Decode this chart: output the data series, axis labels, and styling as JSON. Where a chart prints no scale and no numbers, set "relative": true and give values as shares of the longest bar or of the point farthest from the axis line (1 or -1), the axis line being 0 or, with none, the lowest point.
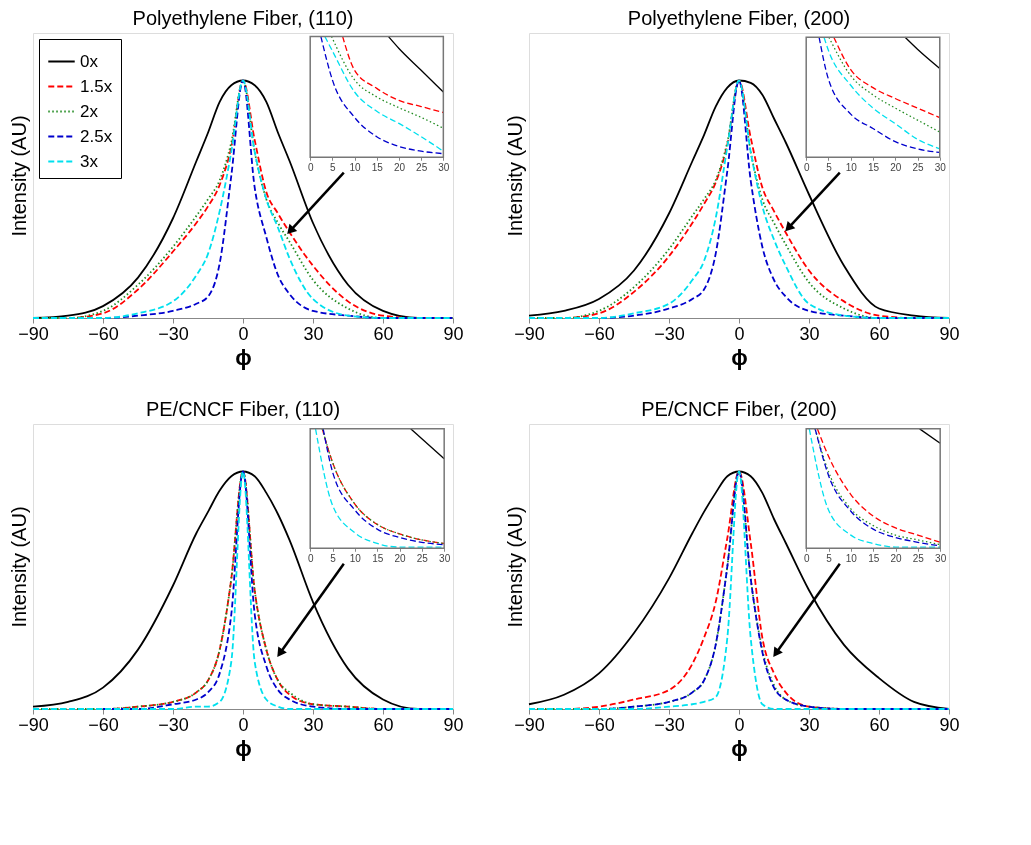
{
  "chart_data": [
    {
      "type": "line",
      "title": "Polyethylene Fiber, (110)",
      "xlabel": "ϕ",
      "ylabel": "Intensity (AU)",
      "relative": true,
      "xlim": [
        -90,
        90
      ],
      "xticks": [
        -90,
        -60,
        -30,
        0,
        30,
        60,
        90
      ],
      "tick_labels": "x",
      "legend": "top left",
      "x": [
        -90,
        -75,
        -60,
        -45,
        -30,
        -20,
        -15,
        -10,
        -5,
        0,
        5,
        10,
        15,
        20,
        30,
        45,
        60,
        75,
        90
      ],
      "series": [
        {
          "name": "0x",
          "color": "#000000",
          "line_style": "solid",
          "values": [
            0,
            0.01,
            0.05,
            0.17,
            0.42,
            0.66,
            0.78,
            0.91,
            0.98,
            1,
            0.98,
            0.91,
            0.78,
            0.66,
            0.4,
            0.14,
            0.03,
            0,
            0
          ]
        },
        {
          "name": "1.5x",
          "color": "#ff0000",
          "line_style": "dashed",
          "values": [
            0,
            0,
            0.02,
            0.12,
            0.28,
            0.4,
            0.47,
            0.56,
            0.72,
            1,
            0.75,
            0.53,
            0.44,
            0.36,
            0.22,
            0.07,
            0.01,
            0,
            0
          ]
        },
        {
          "name": "2x",
          "color": "#228b22",
          "line_style": "dotted",
          "values": [
            0,
            0,
            0.03,
            0.14,
            0.3,
            0.43,
            0.5,
            0.58,
            0.74,
            1,
            0.7,
            0.5,
            0.4,
            0.32,
            0.16,
            0.04,
            0,
            0,
            0
          ]
        },
        {
          "name": "2.5x",
          "color": "#0000cc",
          "line_style": "dashed",
          "values": [
            0,
            0,
            0,
            0.01,
            0.03,
            0.06,
            0.09,
            0.23,
            0.6,
            1,
            0.55,
            0.34,
            0.18,
            0.1,
            0.03,
            0.01,
            0,
            0,
            0
          ]
        },
        {
          "name": "3x",
          "color": "#00e0ee",
          "line_style": "dashed",
          "values": [
            0,
            0,
            0,
            0.02,
            0.07,
            0.18,
            0.27,
            0.45,
            0.7,
            1,
            0.7,
            0.5,
            0.38,
            0.25,
            0.08,
            0.01,
            0,
            0,
            0
          ]
        }
      ]
    },
    {
      "type": "line",
      "relative": true,
      "xlim": [
        0,
        30
      ],
      "xticks": [
        0,
        5,
        10,
        15,
        20,
        25,
        30
      ],
      "tick_labels": "x",
      "series": [
        {
          "color": "#000000",
          "line_style": "solid",
          "x": [
            17.6,
            20,
            25,
            30
          ],
          "values": [
            1,
            0.9,
            0.72,
            0.54
          ]
        },
        {
          "color": "#ff0000",
          "line_style": "dashed",
          "x": [
            7.3,
            10,
            15,
            20,
            25,
            30
          ],
          "values": [
            1,
            0.72,
            0.57,
            0.47,
            0.42,
            0.37
          ]
        },
        {
          "color": "#228b22",
          "line_style": "dotted",
          "x": [
            4.8,
            10,
            15,
            20,
            25,
            30
          ],
          "values": [
            1,
            0.64,
            0.5,
            0.41,
            0.33,
            0.24
          ]
        },
        {
          "color": "#0000cc",
          "line_style": "dashed",
          "x": [
            2.4,
            5,
            10,
            15,
            20,
            25,
            30
          ],
          "values": [
            1,
            0.64,
            0.33,
            0.17,
            0.09,
            0.05,
            0.03
          ]
        },
        {
          "color": "#00e0ee",
          "line_style": "dashed",
          "x": [
            3.3,
            5,
            10,
            15,
            20,
            25,
            30
          ],
          "values": [
            1,
            0.88,
            0.54,
            0.38,
            0.28,
            0.17,
            0.05
          ]
        }
      ]
    },
    {
      "type": "line",
      "title": "Polyethylene Fiber, (200)",
      "xlabel": "ϕ",
      "ylabel": "Intensity (AU)",
      "relative": true,
      "xlim": [
        -90,
        90
      ],
      "xticks": [
        -90,
        -60,
        -30,
        0,
        30,
        60,
        90
      ],
      "tick_labels": "x",
      "x": [
        -90,
        -75,
        -60,
        -45,
        -30,
        -20,
        -15,
        -10,
        -5,
        0,
        5,
        10,
        15,
        20,
        30,
        45,
        60,
        75,
        90
      ],
      "series": [
        {
          "color": "#000000",
          "line_style": "solid",
          "values": [
            0.01,
            0.03,
            0.08,
            0.2,
            0.44,
            0.66,
            0.77,
            0.89,
            0.97,
            1,
            0.99,
            0.94,
            0.84,
            0.74,
            0.52,
            0.22,
            0.04,
            0.01,
            0
          ]
        },
        {
          "color": "#ff0000",
          "line_style": "dashed",
          "values": [
            0,
            0,
            0.02,
            0.11,
            0.26,
            0.4,
            0.48,
            0.57,
            0.73,
            1,
            0.76,
            0.55,
            0.45,
            0.36,
            0.2,
            0.07,
            0.01,
            0,
            0
          ]
        },
        {
          "color": "#228b22",
          "line_style": "dotted",
          "values": [
            0,
            0,
            0.03,
            0.13,
            0.29,
            0.43,
            0.5,
            0.58,
            0.74,
            1,
            0.7,
            0.5,
            0.4,
            0.31,
            0.15,
            0.04,
            0,
            0,
            0
          ]
        },
        {
          "color": "#0000cc",
          "line_style": "dashed",
          "values": [
            0,
            0,
            0,
            0.01,
            0.04,
            0.08,
            0.12,
            0.27,
            0.62,
            1,
            0.58,
            0.3,
            0.16,
            0.09,
            0.03,
            0.01,
            0,
            0,
            0
          ]
        },
        {
          "color": "#00e0ee",
          "line_style": "dashed",
          "values": [
            0,
            0,
            0,
            0.02,
            0.06,
            0.16,
            0.24,
            0.42,
            0.72,
            1,
            0.7,
            0.47,
            0.33,
            0.22,
            0.06,
            0.01,
            0,
            0,
            0
          ]
        }
      ]
    },
    {
      "type": "line",
      "relative": true,
      "xlim": [
        0,
        30
      ],
      "xticks": [
        0,
        5,
        10,
        15,
        20,
        25,
        30
      ],
      "tick_labels": "x",
      "series": [
        {
          "color": "#000000",
          "line_style": "solid",
          "x": [
            22.2,
            25,
            30
          ],
          "values": [
            1,
            0.9,
            0.74
          ]
        },
        {
          "color": "#ff0000",
          "line_style": "dashed",
          "x": [
            6.2,
            10,
            15,
            20,
            25,
            30
          ],
          "values": [
            1,
            0.73,
            0.58,
            0.49,
            0.41,
            0.33
          ]
        },
        {
          "color": "#228b22",
          "line_style": "dotted",
          "x": [
            5.1,
            10,
            15,
            20,
            25,
            30
          ],
          "values": [
            1,
            0.68,
            0.52,
            0.41,
            0.31,
            0.21
          ]
        },
        {
          "color": "#0000cc",
          "line_style": "dashed",
          "x": [
            2.9,
            5,
            10,
            15,
            20,
            25,
            30
          ],
          "values": [
            1,
            0.65,
            0.36,
            0.24,
            0.13,
            0.07,
            0.04
          ]
        },
        {
          "color": "#00e0ee",
          "line_style": "dashed",
          "x": [
            4,
            5,
            10,
            15,
            20,
            25,
            30
          ],
          "values": [
            1,
            0.89,
            0.6,
            0.41,
            0.28,
            0.15,
            0.07
          ]
        }
      ]
    },
    {
      "type": "line",
      "title": "PE/CNCF Fiber, (110)",
      "xlabel": "ϕ",
      "ylabel": "Intensity (AU)",
      "relative": true,
      "xlim": [
        -90,
        90
      ],
      "xticks": [
        -90,
        -60,
        -30,
        0,
        30,
        60,
        90
      ],
      "tick_labels": "x",
      "x": [
        -90,
        -75,
        -60,
        -45,
        -30,
        -20,
        -15,
        -10,
        -5,
        0,
        5,
        10,
        15,
        20,
        30,
        45,
        60,
        75,
        90
      ],
      "series": [
        {
          "color": "#000000",
          "line_style": "solid",
          "values": [
            0.01,
            0.03,
            0.09,
            0.25,
            0.52,
            0.74,
            0.83,
            0.92,
            0.98,
            1,
            0.98,
            0.91,
            0.82,
            0.71,
            0.45,
            0.17,
            0.04,
            0,
            0
          ]
        },
        {
          "color": "#ff0000",
          "line_style": "dashed",
          "values": [
            0,
            0,
            0,
            0.01,
            0.03,
            0.07,
            0.12,
            0.25,
            0.55,
            1,
            0.5,
            0.25,
            0.12,
            0.06,
            0.02,
            0.01,
            0,
            0,
            0
          ]
        },
        {
          "color": "#228b22",
          "line_style": "dotted",
          "values": [
            0,
            0,
            0,
            0.01,
            0.03,
            0.07,
            0.12,
            0.25,
            0.55,
            1,
            0.5,
            0.25,
            0.12,
            0.07,
            0.02,
            0.01,
            0,
            0,
            0
          ]
        },
        {
          "color": "#0000cc",
          "line_style": "dashed",
          "values": [
            null,
            null,
            0,
            0,
            0.02,
            0.04,
            0.07,
            0.15,
            0.4,
            1,
            0.4,
            0.18,
            0.08,
            0.04,
            0.01,
            0,
            0,
            0,
            0
          ]
        },
        {
          "color": "#00e0ee",
          "line_style": "dashed",
          "values": [
            0,
            0,
            0,
            0,
            0,
            0.01,
            0.01,
            0.03,
            0.2,
            1,
            0.2,
            0.04,
            0.01,
            0,
            0,
            0,
            0,
            0,
            0
          ]
        }
      ]
    },
    {
      "type": "line",
      "relative": true,
      "xlim": [
        0,
        30
      ],
      "xticks": [
        0,
        5,
        10,
        15,
        20,
        25,
        30
      ],
      "tick_labels": "x",
      "series": [
        {
          "color": "#000000",
          "line_style": "solid",
          "x": [
            22.5,
            30
          ],
          "values": [
            1,
            0.75
          ]
        },
        {
          "color": "#ff0000",
          "line_style": "dashed",
          "x": [
            2.7,
            5,
            10,
            15,
            20,
            25,
            30
          ],
          "values": [
            1,
            0.72,
            0.37,
            0.2,
            0.12,
            0.07,
            0.04
          ]
        },
        {
          "color": "#228b22",
          "line_style": "dotted",
          "x": [
            2.7,
            5,
            10,
            15,
            20,
            25,
            30
          ],
          "values": [
            1,
            0.72,
            0.37,
            0.2,
            0.12,
            0.07,
            0.04
          ]
        },
        {
          "color": "#0000cc",
          "line_style": "dashed",
          "x": [
            2.9,
            5,
            10,
            15,
            20,
            25,
            30
          ],
          "values": [
            1,
            0.64,
            0.32,
            0.16,
            0.09,
            0.05,
            0.03
          ]
        },
        {
          "color": "#00e0ee",
          "line_style": "dashed",
          "x": [
            1.2,
            5,
            10,
            15,
            20,
            30
          ],
          "values": [
            1,
            0.36,
            0.13,
            0.04,
            0.01,
            0.01
          ]
        }
      ]
    },
    {
      "type": "line",
      "title": "PE/CNCF Fiber, (200)",
      "xlabel": "ϕ",
      "ylabel": "Intensity (AU)",
      "relative": true,
      "xlim": [
        -90,
        90
      ],
      "xticks": [
        -90,
        -60,
        -30,
        0,
        30,
        60,
        90
      ],
      "tick_labels": "x",
      "x": [
        -90,
        -75,
        -60,
        -45,
        -30,
        -20,
        -15,
        -10,
        -5,
        0,
        5,
        10,
        15,
        20,
        30,
        45,
        60,
        75,
        90
      ],
      "series": [
        {
          "color": "#000000",
          "line_style": "solid",
          "values": [
            0.02,
            0.06,
            0.15,
            0.32,
            0.55,
            0.74,
            0.83,
            0.91,
            0.98,
            1,
            0.98,
            0.91,
            0.8,
            0.7,
            0.5,
            0.27,
            0.13,
            0.03,
            0
          ]
        },
        {
          "color": "#ff0000",
          "line_style": "dashed",
          "values": [
            0,
            0,
            0.01,
            0.04,
            0.08,
            0.19,
            0.3,
            0.45,
            0.72,
            1,
            0.7,
            0.3,
            0.15,
            0.07,
            0.01,
            0,
            0,
            null,
            null
          ]
        },
        {
          "color": "#228b22",
          "line_style": "dotted",
          "values": [
            0,
            0,
            0,
            0.01,
            0.03,
            0.07,
            0.12,
            0.27,
            0.6,
            1,
            0.55,
            0.25,
            0.1,
            0.04,
            0.01,
            0,
            null,
            null,
            null
          ]
        },
        {
          "color": "#0000cc",
          "line_style": "dashed",
          "values": [
            0,
            0,
            0,
            0.01,
            0.03,
            0.07,
            0.12,
            0.27,
            0.6,
            1,
            0.55,
            0.24,
            0.09,
            0.04,
            0.01,
            0,
            0,
            0,
            0
          ]
        },
        {
          "color": "#00e0ee",
          "line_style": "dashed",
          "values": [
            0,
            0,
            0,
            0,
            0.01,
            0.02,
            0.03,
            0.05,
            0.3,
            1,
            0.3,
            0.02,
            0,
            0,
            0,
            0,
            0,
            0,
            0
          ]
        }
      ]
    },
    {
      "type": "line",
      "relative": true,
      "xlim": [
        0,
        30
      ],
      "xticks": [
        0,
        5,
        10,
        15,
        20,
        25,
        30
      ],
      "tick_labels": "x",
      "series": [
        {
          "color": "#000000",
          "line_style": "solid",
          "x": [
            25.4,
            30
          ],
          "values": [
            1,
            0.88
          ]
        },
        {
          "color": "#ff0000",
          "line_style": "dashed",
          "x": [
            2.5,
            5,
            10,
            15,
            20,
            25,
            30
          ],
          "values": [
            1,
            0.77,
            0.45,
            0.27,
            0.17,
            0.11,
            0.05
          ]
        },
        {
          "color": "#228b22",
          "line_style": "dotted",
          "x": [
            2,
            5,
            10,
            15,
            20,
            25,
            30
          ],
          "values": [
            1,
            0.64,
            0.33,
            0.19,
            0.11,
            0.07,
            0.03
          ]
        },
        {
          "color": "#0000cc",
          "line_style": "dashed",
          "x": [
            2,
            5,
            10,
            15,
            20,
            25,
            30
          ],
          "values": [
            1,
            0.61,
            0.31,
            0.16,
            0.09,
            0.05,
            0.02
          ]
        },
        {
          "color": "#00e0ee",
          "line_style": "dashed",
          "x": [
            0.7,
            5,
            10,
            15,
            20,
            30
          ],
          "values": [
            1,
            0.32,
            0.11,
            0.04,
            0.01,
            0.01
          ]
        }
      ]
    }
  ]
}
